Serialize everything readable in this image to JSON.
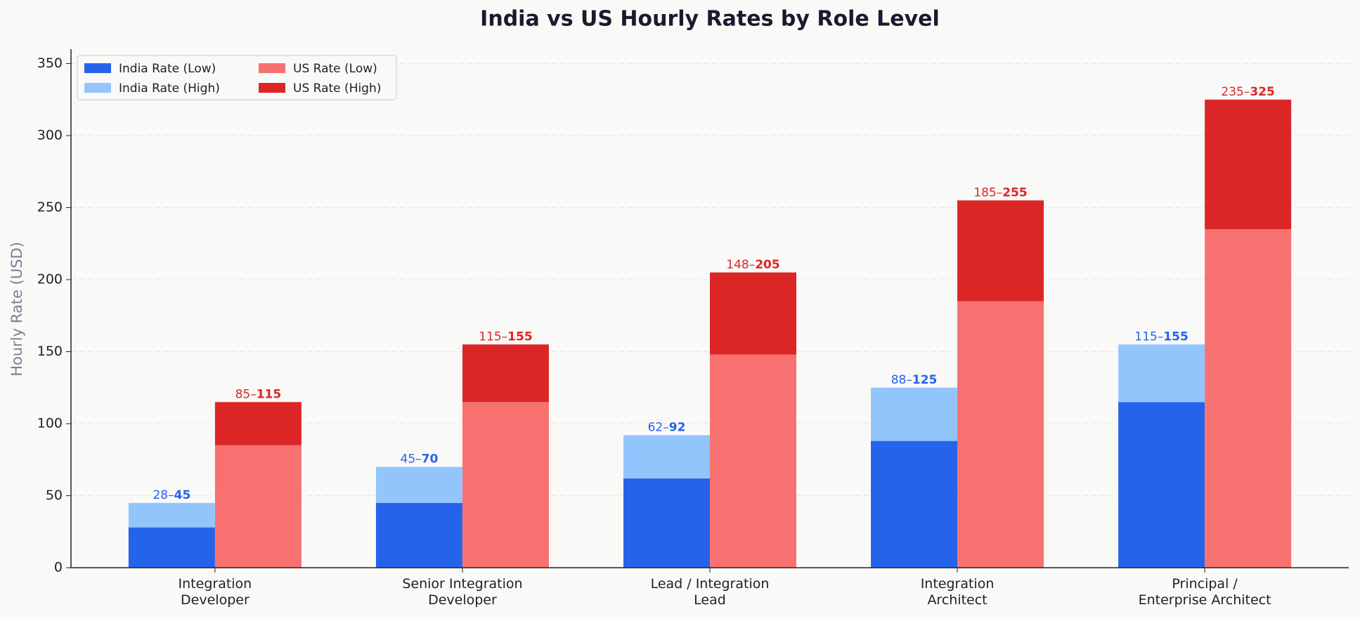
{
  "chart_data": {
    "type": "range_bar",
    "title": "India vs US Hourly Rates by Role Level",
    "y_label": "Hourly Rate (USD)",
    "categories": [
      "Integration\nDeveloper",
      "Senior Integration\nDeveloper",
      "Lead / Integration\nLead",
      "Integration\nArchitect",
      "Principal /\nEnterprise Architect"
    ],
    "series": [
      {
        "name": "India Rate (Low)",
        "color": "#2563eb",
        "values": [
          28,
          45,
          62,
          88,
          115
        ]
      },
      {
        "name": "India Rate (High)",
        "color": "#93c5fd",
        "values": [
          45,
          70,
          92,
          125,
          155
        ]
      },
      {
        "name": "US Rate (Low)",
        "color": "#f87171",
        "values": [
          85,
          115,
          148,
          185,
          235
        ]
      },
      {
        "name": "US Rate (High)",
        "color": "#dc2626",
        "values": [
          115,
          155,
          205,
          255,
          325
        ]
      }
    ],
    "label_colors": [
      "#2563eb",
      "#dc2626"
    ],
    "value_label_separator": "–",
    "ylim": [
      0,
      360
    ],
    "yticks": [
      0,
      50,
      100,
      150,
      200,
      250,
      300,
      350
    ],
    "grid": true,
    "legend": "upper left"
  }
}
